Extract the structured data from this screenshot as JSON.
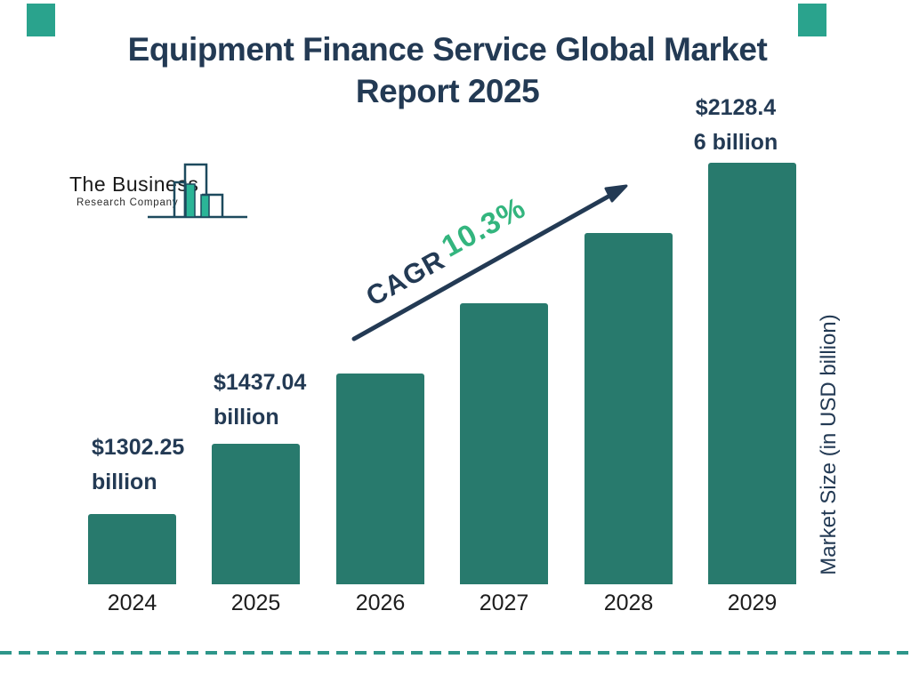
{
  "title": {
    "line1": "Equipment Finance Service Global Market",
    "line2": "Report 2025"
  },
  "logo": {
    "name_line1": "The Business",
    "name_line2": "Research Company"
  },
  "cagr": {
    "label": "CAGR",
    "value": "10.3%"
  },
  "axis": {
    "y_label": "Market Size (in USD billion)"
  },
  "colors": {
    "navy": "#233a54",
    "bar_teal": "#287a6d",
    "green_accent": "#33b57e",
    "divider_teal": "#2e968a",
    "corner_teal": "#2aa38d",
    "logo_green": "#2bb597",
    "logo_outline": "#1d4a5e",
    "year_label": "#1d1d1d"
  },
  "chart_data": {
    "type": "bar",
    "title": "Equipment Finance Service Global Market Report 2025",
    "categories": [
      "2024",
      "2025",
      "2026",
      "2027",
      "2028",
      "2029"
    ],
    "values": [
      1302.25,
      1437.04,
      null,
      null,
      null,
      2128.46
    ],
    "value_labels": [
      [
        "$1302.25",
        "billion"
      ],
      [
        "$1437.04",
        "billion"
      ],
      null,
      null,
      null,
      [
        "$2128.4",
        "6 billion"
      ]
    ],
    "cagr_percent": 10.3,
    "cagr_text": "CAGR 10.3%",
    "xlabel": "",
    "ylabel": "Market Size (in USD billion)",
    "legend": false,
    "grid": false,
    "bar_color": "#287a6d"
  }
}
